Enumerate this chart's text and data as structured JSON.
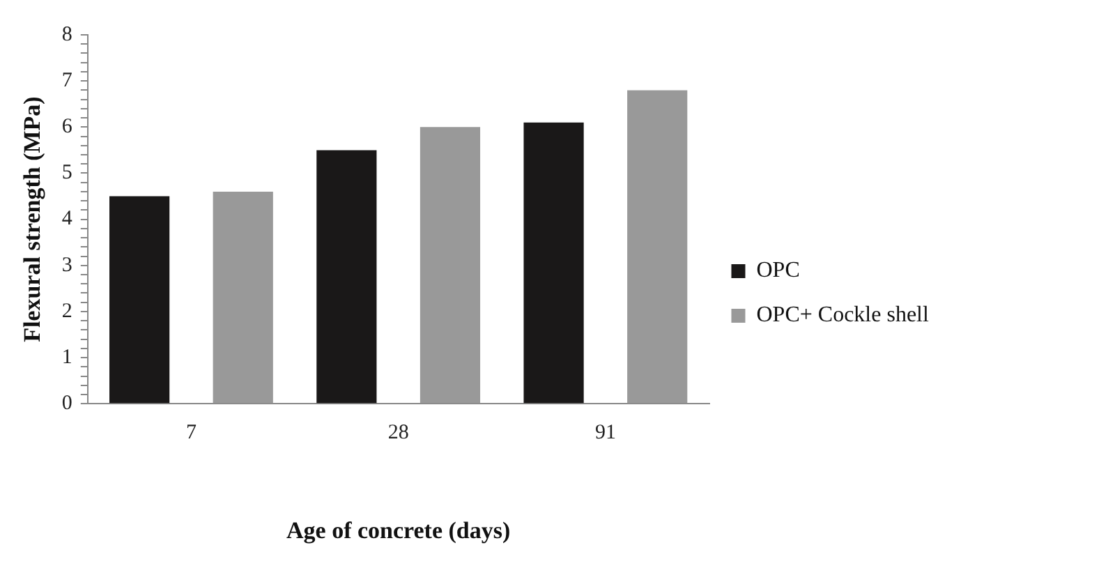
{
  "chart_data": {
    "type": "bar",
    "xlabel": "Age of concrete (days)",
    "ylabel": "Flexural strength (MPa)",
    "categories": [
      "7",
      "28",
      "91"
    ],
    "series": [
      {
        "name": "OPC",
        "color": "#1a1818",
        "values": [
          4.5,
          5.5,
          6.1
        ]
      },
      {
        "name": "OPC+ Cockle shell",
        "color": "#999999",
        "values": [
          4.6,
          6.0,
          6.8
        ]
      }
    ],
    "ylim": [
      0,
      8
    ],
    "yticks": [
      0,
      {
        "value": 0.2,
        "label": null
      },
      {
        "value": 0.4,
        "label": null
      },
      {
        "value": 0.6,
        "label": null
      },
      {
        "value": 0.8,
        "label": null
      },
      1,
      {
        "value": 1.2,
        "label": null
      },
      {
        "value": 1.4,
        "label": null
      },
      {
        "value": 1.6,
        "label": null
      },
      {
        "value": 1.8,
        "label": null
      },
      2,
      {
        "value": 2.2,
        "label": null
      },
      {
        "value": 2.4,
        "label": null
      },
      {
        "value": 2.6,
        "label": null
      },
      {
        "value": 2.8,
        "label": null
      },
      3,
      {
        "value": 3.2,
        "label": null
      },
      {
        "value": 3.4,
        "label": null
      },
      {
        "value": 3.6,
        "label": null
      },
      {
        "value": 3.8,
        "label": null
      },
      4,
      {
        "value": 4.2,
        "label": null
      },
      {
        "value": 4.4,
        "label": null
      },
      {
        "value": 4.6,
        "label": null
      },
      {
        "value": 4.8,
        "label": null
      },
      5,
      {
        "value": 5.2,
        "label": null
      },
      {
        "value": 5.4,
        "label": null
      },
      {
        "value": 5.6,
        "label": null
      },
      {
        "value": 5.8,
        "label": null
      },
      6,
      {
        "value": 6.2,
        "label": null
      },
      {
        "value": 6.4,
        "label": null
      },
      {
        "value": 6.6,
        "label": null
      },
      {
        "value": 6.8,
        "label": null
      },
      7,
      {
        "value": 7.2,
        "label": null
      },
      {
        "value": 7.4,
        "label": null
      },
      {
        "value": 7.6,
        "label": null
      },
      {
        "value": 7.8,
        "label": null
      },
      8
    ],
    "grid": false,
    "legend": "right"
  }
}
